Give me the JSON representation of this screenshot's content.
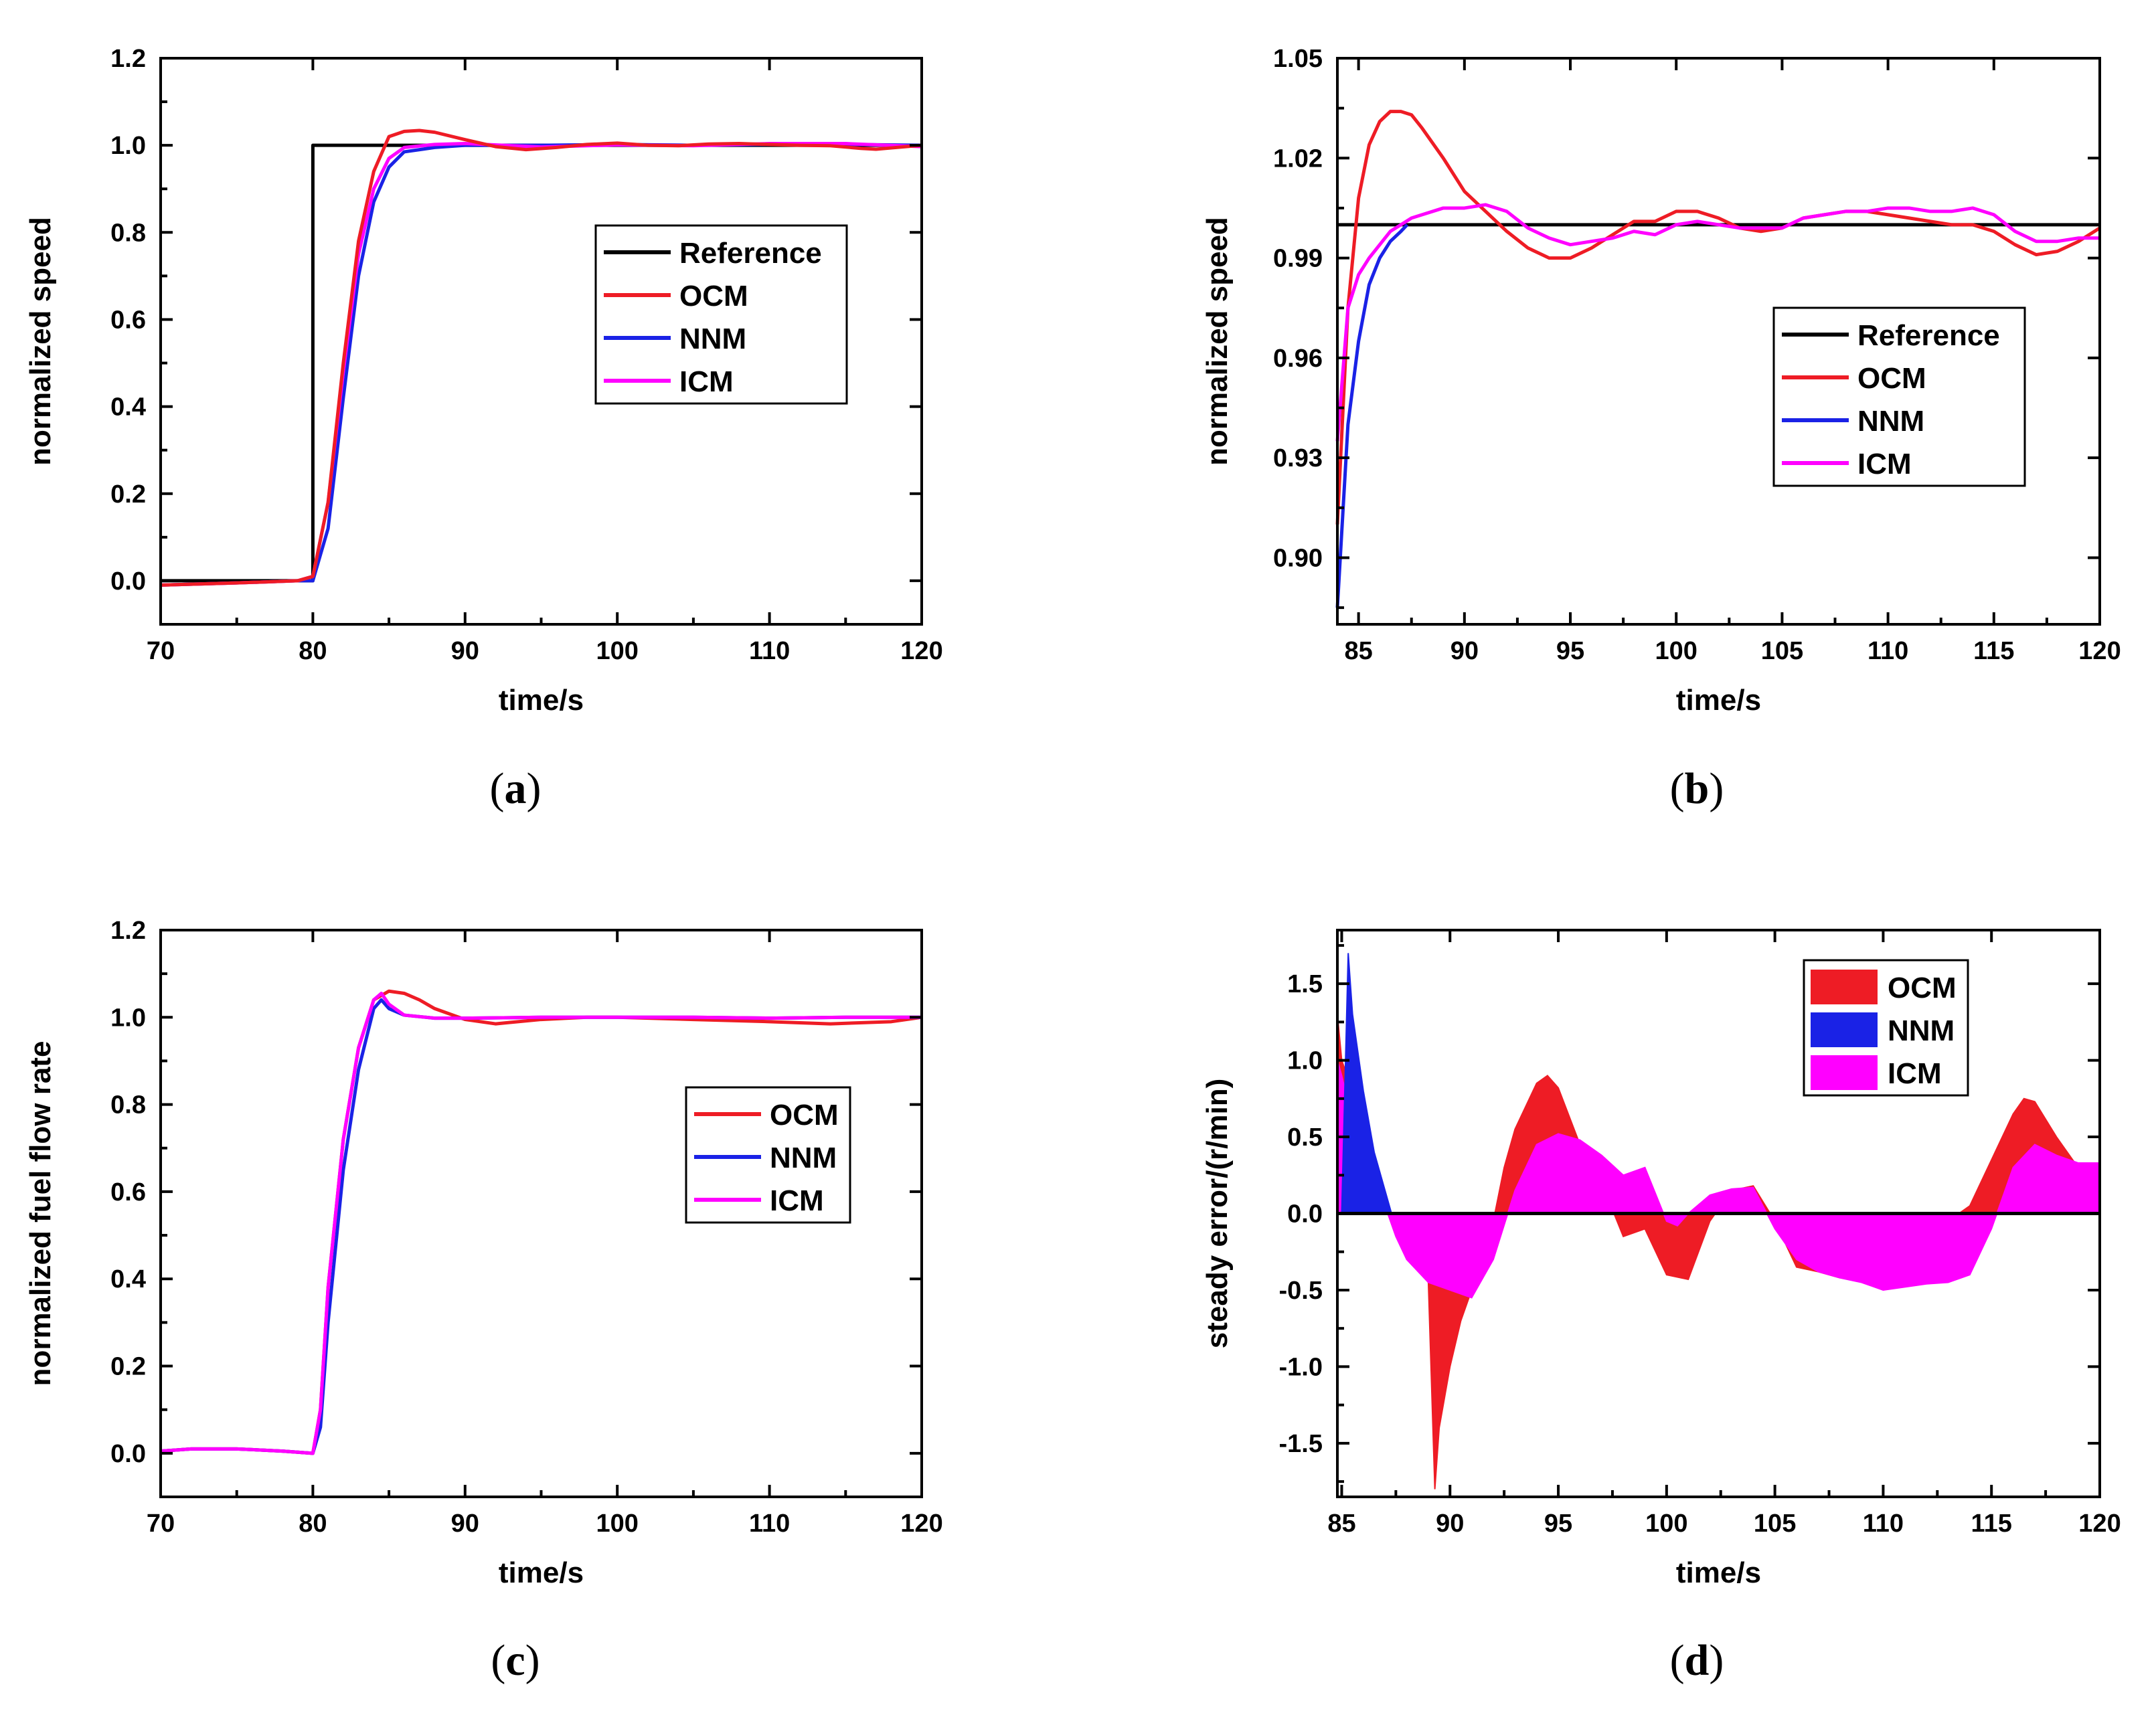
{
  "colors": {
    "Reference": "#000000",
    "OCM": "#ee1c25",
    "NNM": "#1a22e6",
    "ICM": "#ff00ff"
  },
  "chart_data": [
    {
      "type": "line",
      "panel": "a",
      "caption": {
        "open": "(",
        "letter": "a",
        "close": ")"
      },
      "xlabel": "time/s",
      "ylabel": "normalized speed",
      "xlim": [
        70,
        120
      ],
      "ylim": [
        -0.1,
        1.2
      ],
      "xticks": [
        "70",
        "80",
        "90",
        "100",
        "110",
        "120"
      ],
      "yticks": [
        "0.0",
        "0.2",
        "0.4",
        "0.6",
        "0.8",
        "1.0",
        "1.2"
      ],
      "legend": [
        "Reference",
        "OCM",
        "NNM",
        "ICM"
      ],
      "legend_position": "center-right",
      "series": [
        {
          "name": "Reference",
          "x": [
            70,
            80,
            80,
            120
          ],
          "y": [
            0,
            0,
            1.0,
            1.0
          ]
        },
        {
          "name": "NNM",
          "x": [
            70,
            75,
            79,
            80,
            81,
            82,
            83,
            84,
            85,
            86,
            88,
            90,
            95,
            100,
            105,
            110,
            115,
            120
          ],
          "y": [
            -0.01,
            -0.005,
            0.0,
            0.0,
            0.12,
            0.42,
            0.7,
            0.87,
            0.95,
            0.985,
            0.995,
            1.0,
            1.0,
            1.002,
            1.0,
            1.002,
            1.002,
            1.0
          ]
        },
        {
          "name": "ICM",
          "x": [
            70,
            75,
            79,
            80,
            81,
            82,
            83,
            84,
            85,
            86,
            88,
            90,
            95,
            100,
            105,
            110,
            115,
            120
          ],
          "y": [
            -0.01,
            -0.005,
            0.0,
            0.01,
            0.18,
            0.48,
            0.75,
            0.9,
            0.97,
            0.995,
            1.002,
            1.004,
            0.996,
            1.001,
            0.999,
            1.004,
            1.004,
            0.997
          ]
        },
        {
          "name": "OCM",
          "x": [
            70,
            75,
            79,
            80,
            81,
            82,
            83,
            84,
            85,
            86,
            87,
            88,
            90,
            92,
            94,
            96,
            98,
            100,
            102,
            104,
            106,
            108,
            110,
            112,
            114,
            116,
            117,
            118,
            120
          ],
          "y": [
            -0.01,
            -0.005,
            0.0,
            0.01,
            0.18,
            0.5,
            0.78,
            0.94,
            1.02,
            1.032,
            1.034,
            1.03,
            1.013,
            0.997,
            0.99,
            0.995,
            1.002,
            1.005,
            1.0,
            0.999,
            1.003,
            1.004,
            1.002,
            1.0,
            0.999,
            0.993,
            0.991,
            0.994,
            1.0
          ]
        }
      ]
    },
    {
      "type": "line",
      "panel": "b",
      "caption": {
        "open": "(",
        "letter": "b",
        "close": ")"
      },
      "xlabel": "time/s",
      "ylabel": "normalized speed",
      "xlim": [
        84,
        120
      ],
      "ylim": [
        0.88,
        1.05
      ],
      "xticks": [
        "85",
        "90",
        "95",
        "100",
        "105",
        "110",
        "115",
        "120"
      ],
      "yticks": [
        "0.90",
        "0.93",
        "0.96",
        "0.99",
        "1.02",
        "1.05"
      ],
      "legend": [
        "Reference",
        "OCM",
        "NNM",
        "ICM"
      ],
      "legend_position": "right",
      "series": [
        {
          "name": "Reference",
          "x": [
            84,
            120
          ],
          "y": [
            1.0,
            1.0
          ]
        },
        {
          "name": "NNM",
          "x": [
            84,
            84.5,
            85,
            85.5,
            86,
            86.5,
            87,
            87.3
          ],
          "y": [
            0.885,
            0.94,
            0.965,
            0.982,
            0.99,
            0.995,
            0.998,
            1.0
          ]
        },
        {
          "name": "OCM",
          "x": [
            84,
            84.5,
            85,
            85.5,
            86,
            86.5,
            87,
            87.5,
            88,
            89,
            90,
            91,
            92,
            93,
            94,
            95,
            96,
            97,
            98,
            99,
            100,
            101,
            102,
            103,
            104,
            105,
            106,
            107,
            108,
            109,
            110,
            111,
            112,
            113,
            114,
            115,
            116,
            117,
            118,
            119,
            120
          ],
          "y": [
            0.91,
            0.975,
            1.008,
            1.024,
            1.031,
            1.034,
            1.034,
            1.033,
            1.029,
            1.02,
            1.01,
            1.004,
            0.998,
            0.993,
            0.99,
            0.99,
            0.993,
            0.997,
            1.001,
            1.001,
            1.004,
            1.004,
            1.002,
            0.999,
            0.998,
            0.999,
            1.002,
            1.003,
            1.004,
            1.004,
            1.003,
            1.002,
            1.001,
            1.0,
            1.0,
            0.998,
            0.994,
            0.991,
            0.992,
            0.995,
            0.999
          ]
        },
        {
          "name": "ICM",
          "x": [
            84,
            84.5,
            85,
            85.5,
            86,
            86.5,
            87,
            87.5,
            88,
            89,
            90,
            91,
            92,
            93,
            94,
            95,
            96,
            97,
            98,
            99,
            100,
            101,
            102,
            103,
            104,
            105,
            106,
            107,
            108,
            109,
            110,
            111,
            112,
            113,
            114,
            115,
            116,
            117,
            118,
            119,
            120
          ],
          "y": [
            0.935,
            0.975,
            0.985,
            0.99,
            0.994,
            0.998,
            1.0,
            1.002,
            1.003,
            1.005,
            1.005,
            1.006,
            1.004,
            0.999,
            0.996,
            0.994,
            0.995,
            0.996,
            0.998,
            0.997,
            1.0,
            1.001,
            1.0,
            0.999,
            0.999,
            0.999,
            1.002,
            1.003,
            1.004,
            1.004,
            1.005,
            1.005,
            1.004,
            1.004,
            1.005,
            1.003,
            0.998,
            0.995,
            0.995,
            0.996,
            0.996
          ]
        }
      ]
    },
    {
      "type": "line",
      "panel": "c",
      "caption": {
        "open": "(",
        "letter": "c",
        "close": ")"
      },
      "xlabel": "time/s",
      "ylabel": "normalized fuel flow rate",
      "xlim": [
        70,
        120
      ],
      "ylim": [
        -0.1,
        1.2
      ],
      "xticks": [
        "70",
        "80",
        "90",
        "100",
        "110",
        "120"
      ],
      "yticks": [
        "0.0",
        "0.2",
        "0.4",
        "0.6",
        "0.8",
        "1.0",
        "1.2"
      ],
      "legend": [
        "OCM",
        "NNM",
        "ICM"
      ],
      "legend_position": "center-right",
      "series": [
        {
          "name": "OCM",
          "x": [
            70,
            72,
            75,
            78,
            80,
            80.5,
            81,
            82,
            83,
            84,
            85,
            86,
            87,
            88,
            90,
            92,
            95,
            98,
            100,
            105,
            110,
            114,
            118,
            120
          ],
          "y": [
            0.005,
            0.01,
            0.01,
            0.005,
            0.0,
            0.1,
            0.38,
            0.72,
            0.93,
            1.04,
            1.06,
            1.055,
            1.04,
            1.02,
            0.995,
            0.985,
            0.995,
            1.0,
            1.0,
            0.995,
            0.99,
            0.985,
            0.99,
            1.0
          ]
        },
        {
          "name": "NNM",
          "x": [
            70,
            72,
            75,
            78,
            80,
            80.5,
            81,
            82,
            83,
            84,
            84.5,
            85,
            86,
            88,
            90,
            95,
            100,
            105,
            110,
            115,
            120
          ],
          "y": [
            0.005,
            0.01,
            0.01,
            0.005,
            0.0,
            0.06,
            0.3,
            0.65,
            0.88,
            1.02,
            1.04,
            1.02,
            1.005,
            0.998,
            0.998,
            1.0,
            1.0,
            1.0,
            0.998,
            1.0,
            1.0
          ]
        },
        {
          "name": "ICM",
          "x": [
            70,
            72,
            75,
            78,
            80,
            80.5,
            81,
            82,
            83,
            84,
            84.5,
            85,
            86,
            88,
            90,
            95,
            100,
            105,
            110,
            115,
            120
          ],
          "y": [
            0.005,
            0.01,
            0.01,
            0.005,
            0.0,
            0.1,
            0.38,
            0.72,
            0.93,
            1.04,
            1.055,
            1.03,
            1.005,
            0.998,
            0.998,
            1.0,
            1.0,
            1.0,
            0.998,
            1.0,
            1.0
          ]
        }
      ]
    },
    {
      "type": "area",
      "panel": "d",
      "caption": {
        "open": "(",
        "letter": "d",
        "close": ")"
      },
      "xlabel": "time/s",
      "ylabel": "steady error/(r/min)",
      "xlim": [
        84.8,
        120
      ],
      "ylim": [
        -1.85,
        1.85
      ],
      "xticks": [
        "85",
        "90",
        "95",
        "100",
        "105",
        "110",
        "115",
        "120"
      ],
      "yticks": [
        "-1.5",
        "-1.0",
        "-0.5",
        "0.0",
        "0.5",
        "1.0",
        "1.5"
      ],
      "legend": [
        "OCM",
        "NNM",
        "ICM"
      ],
      "legend_position": "top-right",
      "series": [
        {
          "name": "OCM",
          "x": [
            84.8,
            85,
            86,
            87,
            88,
            89,
            89.3,
            89.5,
            90,
            90.5,
            91,
            91.5,
            92,
            92.5,
            93,
            94,
            94.5,
            95,
            96,
            97,
            98,
            99,
            100,
            101,
            102,
            103,
            104,
            105,
            106,
            107,
            108,
            109,
            110,
            111,
            112,
            113,
            114,
            115,
            116,
            116.5,
            117,
            118,
            119,
            120
          ],
          "y": [
            1.3,
            1.0,
            0.6,
            0.1,
            -0.25,
            -0.45,
            -1.8,
            -1.4,
            -1.0,
            -0.7,
            -0.5,
            -0.3,
            -0.05,
            0.3,
            0.55,
            0.85,
            0.9,
            0.82,
            0.45,
            0.2,
            -0.15,
            -0.1,
            -0.4,
            -0.43,
            -0.05,
            0.15,
            0.18,
            -0.05,
            -0.35,
            -0.38,
            -0.42,
            -0.38,
            -0.3,
            -0.25,
            -0.15,
            -0.05,
            0.05,
            0.35,
            0.65,
            0.75,
            0.73,
            0.5,
            0.3,
            0.25
          ]
        },
        {
          "name": "ICM",
          "x": [
            84.8,
            85,
            85.5,
            86,
            86.5,
            87,
            87.5,
            88,
            89,
            90,
            91,
            92,
            93,
            94,
            95,
            96,
            97,
            98,
            99,
            100,
            100.5,
            101,
            102,
            103,
            104,
            105,
            106,
            107,
            108,
            109,
            110,
            111,
            112,
            113,
            114,
            115,
            116,
            117,
            118,
            119,
            120
          ],
          "y": [
            1.0,
            0.9,
            0.6,
            0.4,
            0.2,
            0.05,
            -0.15,
            -0.3,
            -0.45,
            -0.5,
            -0.55,
            -0.3,
            0.15,
            0.45,
            0.52,
            0.48,
            0.38,
            0.25,
            0.3,
            -0.05,
            -0.08,
            0.0,
            0.12,
            0.16,
            0.17,
            -0.1,
            -0.3,
            -0.38,
            -0.42,
            -0.45,
            -0.5,
            -0.48,
            -0.46,
            -0.45,
            -0.4,
            -0.1,
            0.3,
            0.45,
            0.38,
            0.33,
            0.33
          ]
        },
        {
          "name": "NNM",
          "x": [
            85,
            85.3,
            85.5,
            86,
            86.5,
            87,
            87.3
          ],
          "y": [
            0.0,
            1.7,
            1.3,
            0.8,
            0.4,
            0.15,
            0.0
          ]
        }
      ]
    }
  ]
}
